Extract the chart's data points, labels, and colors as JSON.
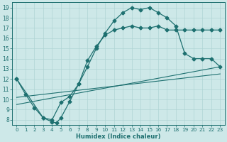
{
  "background_color": "#cde8e8",
  "grid_color": "#b0d4d4",
  "line_color": "#1e7070",
  "xlabel": "Humidex (Indice chaleur)",
  "xlim": [
    -0.5,
    23.5
  ],
  "ylim": [
    7.5,
    19.5
  ],
  "xticks": [
    0,
    1,
    2,
    3,
    4,
    5,
    6,
    7,
    8,
    9,
    10,
    11,
    12,
    13,
    14,
    15,
    16,
    17,
    18,
    19,
    20,
    21,
    22,
    23
  ],
  "yticks": [
    8,
    9,
    10,
    11,
    12,
    13,
    14,
    15,
    16,
    17,
    18,
    19
  ],
  "curve1_x": [
    0,
    1,
    2,
    3,
    4,
    5,
    6,
    7,
    8,
    9,
    10,
    11,
    12,
    13,
    14,
    15,
    16,
    17,
    18,
    19,
    20,
    21,
    22,
    23
  ],
  "curve1_y": [
    12,
    10.5,
    9.2,
    8.2,
    8.0,
    9.7,
    10.3,
    11.5,
    13.2,
    15.0,
    16.5,
    17.7,
    18.5,
    19.0,
    18.8,
    19.0,
    18.5,
    18.0,
    17.2,
    14.5,
    14.0,
    14.0,
    14.0,
    13.2
  ],
  "curve2_x": [
    0,
    3,
    4,
    4.5,
    5,
    6,
    7,
    8,
    9,
    10,
    11,
    12,
    13,
    14,
    15,
    16,
    17,
    18,
    19,
    20,
    21,
    22,
    23
  ],
  "curve2_y": [
    12,
    8.2,
    7.8,
    7.7,
    8.2,
    9.8,
    11.5,
    13.8,
    15.2,
    16.3,
    16.8,
    17.0,
    17.2,
    17.0,
    17.0,
    17.2,
    16.8,
    16.8,
    16.8,
    16.8,
    16.8,
    16.8,
    16.8
  ],
  "line1_x": [
    0,
    23
  ],
  "line1_y": [
    9.5,
    13.2
  ],
  "line2_x": [
    0,
    23
  ],
  "line2_y": [
    10.2,
    12.5
  ],
  "marker_size": 2.5
}
